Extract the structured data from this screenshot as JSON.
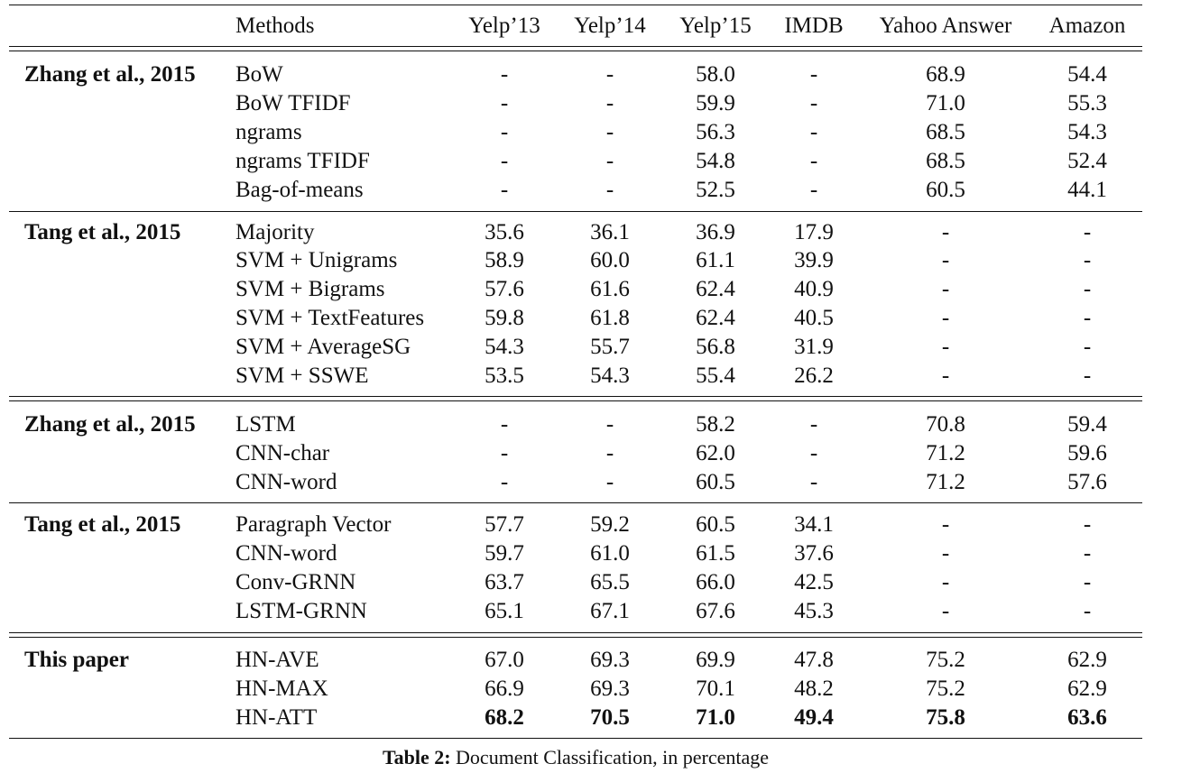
{
  "table": {
    "columns": [
      "Methods",
      "Yelp’13",
      "Yelp’14",
      "Yelp’15",
      "IMDB",
      "Yahoo Answer",
      "Amazon"
    ],
    "groups": [
      {
        "label": "Zhang et al., 2015",
        "rows": [
          {
            "method": "BoW",
            "values": [
              "-",
              "-",
              "58.0",
              "-",
              "68.9",
              "54.4"
            ]
          },
          {
            "method": "BoW TFIDF",
            "values": [
              "-",
              "-",
              "59.9",
              "-",
              "71.0",
              "55.3"
            ]
          },
          {
            "method": "ngrams",
            "values": [
              "-",
              "-",
              "56.3",
              "-",
              "68.5",
              "54.3"
            ]
          },
          {
            "method": "ngrams TFIDF",
            "values": [
              "-",
              "-",
              "54.8",
              "-",
              "68.5",
              "52.4"
            ]
          },
          {
            "method": "Bag-of-means",
            "values": [
              "-",
              "-",
              "52.5",
              "-",
              "60.5",
              "44.1"
            ]
          }
        ]
      },
      {
        "label": "Tang et al., 2015",
        "rows": [
          {
            "method": "Majority",
            "values": [
              "35.6",
              "36.1",
              "36.9",
              "17.9",
              "-",
              "-"
            ]
          },
          {
            "method": "SVM + Unigrams",
            "values": [
              "58.9",
              "60.0",
              "61.1",
              "39.9",
              "-",
              "-"
            ]
          },
          {
            "method": "SVM + Bigrams",
            "values": [
              "57.6",
              "61.6",
              "62.4",
              "40.9",
              "-",
              "-"
            ]
          },
          {
            "method": "SVM + TextFeatures",
            "values": [
              "59.8",
              "61.8",
              "62.4",
              "40.5",
              "-",
              "-"
            ]
          },
          {
            "method": "SVM + AverageSG",
            "values": [
              "54.3",
              "55.7",
              "56.8",
              "31.9",
              "-",
              "-"
            ]
          },
          {
            "method": "SVM + SSWE",
            "values": [
              "53.5",
              "54.3",
              "55.4",
              "26.2",
              "-",
              "-"
            ]
          }
        ]
      },
      {
        "label": "Zhang et al., 2015",
        "rows": [
          {
            "method": "LSTM",
            "values": [
              "-",
              "-",
              "58.2",
              "-",
              "70.8",
              "59.4"
            ]
          },
          {
            "method": "CNN-char",
            "values": [
              "-",
              "-",
              "62.0",
              "-",
              "71.2",
              "59.6"
            ]
          },
          {
            "method": "CNN-word",
            "values": [
              "-",
              "-",
              "60.5",
              "-",
              "71.2",
              "57.6"
            ]
          }
        ]
      },
      {
        "label": "Tang et al., 2015",
        "rows": [
          {
            "method": "Paragraph Vector",
            "values": [
              "57.7",
              "59.2",
              "60.5",
              "34.1",
              "-",
              "-"
            ]
          },
          {
            "method": "CNN-word",
            "values": [
              "59.7",
              "61.0",
              "61.5",
              "37.6",
              "-",
              "-"
            ]
          },
          {
            "method": "Conv-GRNN",
            "values": [
              "63.7",
              "65.5",
              "66.0",
              "42.5",
              "-",
              "-"
            ]
          },
          {
            "method": "LSTM-GRNN",
            "values": [
              "65.1",
              "67.1",
              "67.6",
              "45.3",
              "-",
              "-"
            ]
          }
        ]
      },
      {
        "label": "This paper",
        "rows": [
          {
            "method": "HN-AVE",
            "values": [
              "67.0",
              "69.3",
              "69.9",
              "47.8",
              "75.2",
              "62.9"
            ]
          },
          {
            "method": "HN-MAX",
            "values": [
              "66.9",
              "69.3",
              "70.1",
              "48.2",
              "75.2",
              "62.9"
            ]
          },
          {
            "method": "HN-ATT",
            "values": [
              "68.2",
              "70.5",
              "71.0",
              "49.4",
              "75.8",
              "63.6"
            ],
            "bold": true
          }
        ]
      }
    ]
  },
  "caption": {
    "label": "Table 2:",
    "text": "Document Classification, in percentage"
  }
}
